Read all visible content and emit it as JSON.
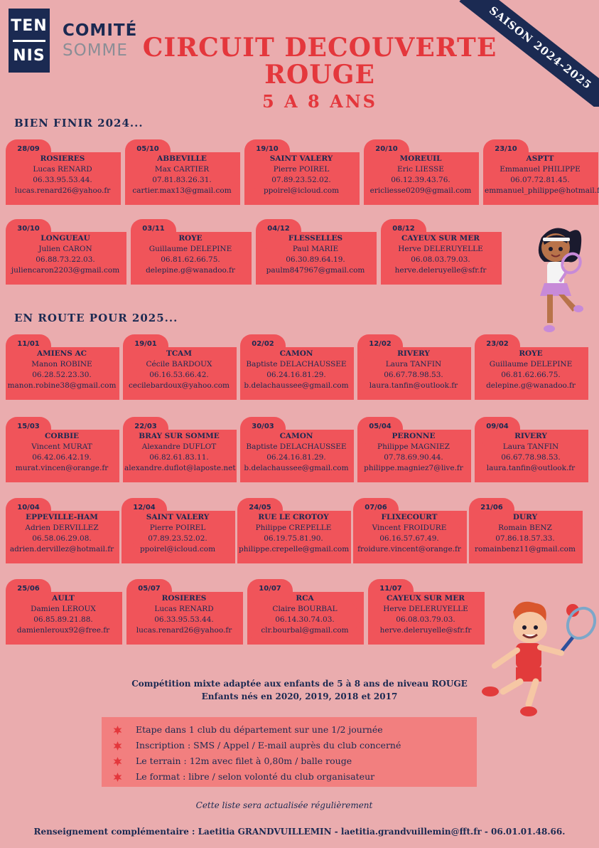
{
  "header": {
    "logo_line1": "TEN",
    "logo_line2": "NIS",
    "comite": "COMITÉ",
    "somme": "SOMME",
    "title_line1": "CIRCUIT DECOUVERTE",
    "title_line2": "ROUGE",
    "subtitle": "5 A 8 ANS",
    "season": "SAISON 2024-2025"
  },
  "sections": [
    {
      "heading": "BIEN FINIR 2024...",
      "rows": [
        [
          {
            "date": "28/09",
            "club": "ROSIERES",
            "name": "Lucas RENARD",
            "phone": "06.33.95.53.44.",
            "email": "lucas.renard26@yahoo.fr"
          },
          {
            "date": "05/10",
            "club": "ABBEVILLE",
            "name": "Max CARTIER",
            "phone": "07.81.83.26.31.",
            "email": "cartier.max13@gmail.com"
          },
          {
            "date": "19/10",
            "club": "SAINT VALERY",
            "name": "Pierre POIREL",
            "phone": "07.89.23.52.02.",
            "email": "ppoirel@icloud.com"
          },
          {
            "date": "20/10",
            "club": "MOREUIL",
            "name": "Eric LIESSE",
            "phone": "06.12.39.43.76.",
            "email": "ericliesse0209@gmail.com"
          },
          {
            "date": "23/10",
            "club": "ASPTT",
            "name": "Emmanuel PHILIPPE",
            "phone": "06.07.72.81.45.",
            "email": "emmanuel_philippe@hotmail.fr"
          }
        ],
        [
          {
            "date": "30/10",
            "club": "LONGUEAU",
            "name": "Julien CARON",
            "phone": "06.88.73.22.03.",
            "email": "juliencaron2203@gmail.com"
          },
          {
            "date": "03/11",
            "club": "ROYE",
            "name": "Guillaume DELEPINE",
            "phone": "06.81.62.66.75.",
            "email": "delepine.g@wanadoo.fr"
          },
          {
            "date": "04/12",
            "club": "FLESSELLES",
            "name": "Paul MARIE",
            "phone": "06.30.89.64.19.",
            "email": "paulm847967@gmail.com"
          },
          {
            "date": "08/12",
            "club": "CAYEUX SUR MER",
            "name": "Herve DELERUYELLE",
            "phone": "06.08.03.79.03.",
            "email": "herve.deleruyelle@sfr.fr"
          }
        ]
      ]
    },
    {
      "heading": "EN ROUTE POUR 2025...",
      "rows": [
        [
          {
            "date": "11/01",
            "club": "AMIENS AC",
            "name": "Manon ROBINE",
            "phone": "06.28.52.23.30.",
            "email": "manon.robine38@gmail.com"
          },
          {
            "date": "19/01",
            "club": "TCAM",
            "name": "Cécile BARDOUX",
            "phone": "06.16.53.66.42.",
            "email": "cecilebardoux@yahoo.com"
          },
          {
            "date": "02/02",
            "club": "CAMON",
            "name": "Baptiste DELACHAUSSEE",
            "phone": "06.24.16.81.29.",
            "email": "b.delachaussee@gmail.com"
          },
          {
            "date": "12/02",
            "club": "RIVERY",
            "name": "Laura TANFIN",
            "phone": "06.67.78.98.53.",
            "email": "laura.tanfin@outlook.fr"
          },
          {
            "date": "23/02",
            "club": "ROYE",
            "name": "Guillaume DELEPINE",
            "phone": "06.81.62.66.75.",
            "email": "delepine.g@wanadoo.fr"
          }
        ],
        [
          {
            "date": "15/03",
            "club": "CORBIE",
            "name": "Vincent MURAT",
            "phone": "06.42.06.42.19.",
            "email": "murat.vincen@orange.fr"
          },
          {
            "date": "22/03",
            "club": "BRAY SUR SOMME",
            "name": "Alexandre DUFLOT",
            "phone": "06.82.61.83.11.",
            "email": "alexandre.duflot@laposte.net"
          },
          {
            "date": "30/03",
            "club": "CAMON",
            "name": "Baptiste DELACHAUSSEE",
            "phone": "06.24.16.81.29.",
            "email": "b.delachaussee@gmail.com"
          },
          {
            "date": "05/04",
            "club": "PERONNE",
            "name": "Philippe MAGNIEZ",
            "phone": "07.78.69.90.44.",
            "email": "philippe.magniez7@live.fr"
          },
          {
            "date": "09/04",
            "club": "RIVERY",
            "name": "Laura TANFIN",
            "phone": "06.67.78.98.53.",
            "email": "laura.tanfin@outlook.fr"
          }
        ],
        [
          {
            "date": "10/04",
            "club": "EPPEVILLE-HAM",
            "name": "Adrien DERVILLEZ",
            "phone": "06.58.06.29.08.",
            "email": "adrien.dervillez@hotmail.fr"
          },
          {
            "date": "12/04",
            "club": "SAINT VALERY",
            "name": "Pierre POIREL",
            "phone": "07.89.23.52.02.",
            "email": "ppoirel@icloud.com"
          },
          {
            "date": "24/05",
            "club": "RUE LE CROTOY",
            "name": "Philippe CREPELLE",
            "phone": "06.19.75.81.90.",
            "email": "philippe.crepelle@gmail.com"
          },
          {
            "date": "07/06",
            "club": "FLIXECOURT",
            "name": "Vincent FROIDURE",
            "phone": "06.16.57.67.49.",
            "email": "froidure.vincent@orange.fr"
          },
          {
            "date": "21/06",
            "club": "DURY",
            "name": "Romain BENZ",
            "phone": "07.86.18.57.33.",
            "email": "romainbenz11@gmail.com"
          }
        ],
        [
          {
            "date": "25/06",
            "club": "AULT",
            "name": "Damien LEROUX",
            "phone": "06.85.89.21.88.",
            "email": "damienleroux92@free.fr"
          },
          {
            "date": "05/07",
            "club": "ROSIERES",
            "name": "Lucas RENARD",
            "phone": "06.33.95.53.44.",
            "email": "lucas.renard26@yahoo.fr"
          },
          {
            "date": "10/07",
            "club": "RCA",
            "name": "Claire BOURBAL",
            "phone": "06.14.30.74.03.",
            "email": "clr.bourbal@gmail.com"
          },
          {
            "date": "11/07",
            "club": "CAYEUX SUR MER",
            "name": "Herve DELERUYELLE",
            "phone": "06.08.03.79.03.",
            "email": "herve.deleruyelle@sfr.fr"
          }
        ]
      ]
    }
  ],
  "competition_line1": "Compétition mixte adaptée aux enfants de 5 à 8 ans de niveau ROUGE",
  "competition_line2": "Enfants nés en 2020, 2019, 2018 et 2017",
  "info_items": [
    "Etape dans 1 club du département sur une 1/2 journée",
    "Inscription : SMS / Appel / E-mail auprès du club concerné",
    "Le terrain : 12m avec filet à 0,80m / balle rouge",
    "Le format : libre / selon volonté du club organisateur"
  ],
  "update_note": "Cette liste sera actualisée régulièrement",
  "contact": "Renseignement complémentaire : Laetitia GRANDVUILLEMIN - laetitia.grandvuillemin@fft.fr - 06.01.01.48.66.",
  "colors": {
    "background": "#eaacae",
    "card": "#f0545a",
    "navy": "#1b2a52",
    "title": "#e4373c",
    "infobox": "#f27f7f"
  }
}
